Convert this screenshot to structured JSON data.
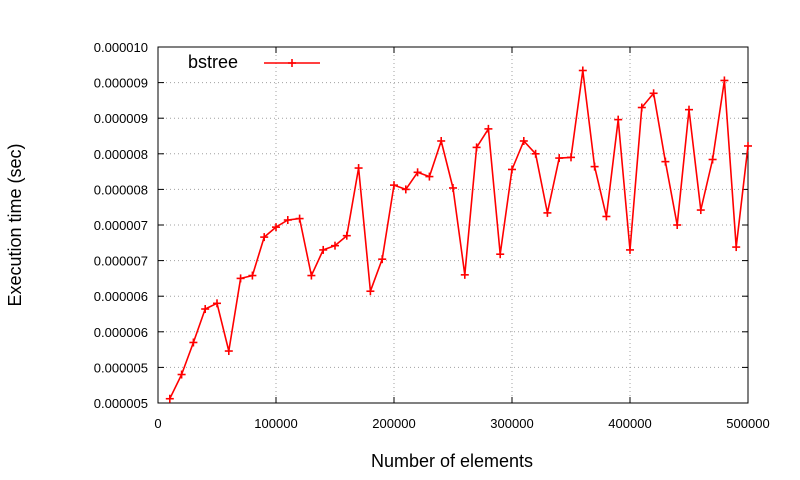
{
  "chart_data": {
    "type": "line",
    "xlabel": "Number of elements",
    "ylabel": "Execution time (sec)",
    "xlim": [
      0,
      500000
    ],
    "ylim": [
      4.5e-06,
      9.5e-06
    ],
    "x_ticks": [
      0,
      100000,
      200000,
      300000,
      400000,
      500000
    ],
    "x_tick_labels": [
      "0",
      "100000",
      "200000",
      "300000",
      "400000",
      "500000"
    ],
    "y_ticks": [
      4.5e-06,
      5e-06,
      5.5e-06,
      6e-06,
      6.5e-06,
      7e-06,
      7.5e-06,
      8e-06,
      8.5e-06,
      9e-06,
      9.5e-06
    ],
    "y_tick_labels": [
      "0.000005",
      "0.000005",
      "0.000006",
      "0.000006",
      "0.000007",
      "0.000007",
      "0.000008",
      "0.000008",
      "0.000009",
      "0.000009",
      "0.000010"
    ],
    "grid": true,
    "legend_position": "top-left",
    "series": [
      {
        "name": "bstree",
        "color": "#ff0000",
        "marker": "plus",
        "x": [
          10000,
          20000,
          30000,
          40000,
          50000,
          60000,
          70000,
          80000,
          90000,
          100000,
          110000,
          120000,
          130000,
          140000,
          150000,
          160000,
          170000,
          180000,
          190000,
          200000,
          210000,
          220000,
          230000,
          240000,
          250000,
          260000,
          270000,
          280000,
          290000,
          300000,
          310000,
          320000,
          330000,
          340000,
          350000,
          360000,
          370000,
          380000,
          390000,
          400000,
          410000,
          420000,
          430000,
          440000,
          450000,
          460000,
          470000,
          480000,
          490000,
          500000
        ],
        "y": [
          4.56e-06,
          4.9e-06,
          5.35e-06,
          5.82e-06,
          5.9e-06,
          5.23e-06,
          6.25e-06,
          6.29e-06,
          6.83e-06,
          6.97e-06,
          7.07e-06,
          7.09e-06,
          6.29e-06,
          6.65e-06,
          6.71e-06,
          6.85e-06,
          7.8e-06,
          6.07e-06,
          6.52e-06,
          7.56e-06,
          7.5e-06,
          7.74e-06,
          7.68e-06,
          8.18e-06,
          7.52e-06,
          6.3e-06,
          8.09e-06,
          8.35e-06,
          6.59e-06,
          7.78e-06,
          8.18e-06,
          8e-06,
          7.17e-06,
          7.94e-06,
          7.95e-06,
          9.17e-06,
          7.82e-06,
          7.12e-06,
          8.48e-06,
          6.65e-06,
          8.65e-06,
          8.85e-06,
          7.89e-06,
          7e-06,
          8.62e-06,
          7.21e-06,
          7.92e-06,
          9.03e-06,
          6.69e-06,
          8.11e-06
        ]
      }
    ]
  }
}
